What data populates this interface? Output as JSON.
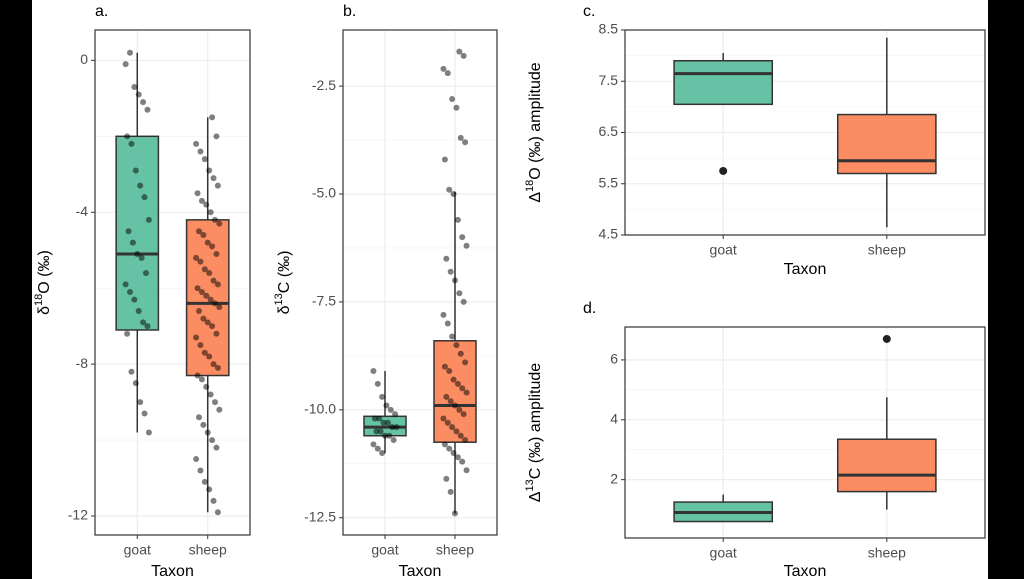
{
  "chart_data": [
    {
      "type": "boxplot",
      "panel_label": "a.",
      "ylabel": [
        "δ",
        "18",
        "O (‰)"
      ],
      "xlabel": "Taxon",
      "categories": [
        "goat",
        "sheep"
      ],
      "colors": [
        "#66c2a5",
        "#fc8d62"
      ],
      "ylim": [
        -12.5,
        0.8
      ],
      "yticks": [
        0,
        -4,
        -8,
        -12
      ],
      "grid": true,
      "stats": [
        {
          "whislo": -9.8,
          "q1": -7.1,
          "med": -5.1,
          "q3": -2.0,
          "whishi": 0.2,
          "outliers": []
        },
        {
          "whislo": -11.9,
          "q1": -8.3,
          "med": -6.4,
          "q3": -4.2,
          "whishi": -1.5,
          "outliers": []
        }
      ],
      "points": [
        [
          -0.1,
          0.2,
          -0.7,
          -0.9,
          -1.1,
          -1.3,
          -2.0,
          -2.2,
          -2.9,
          -3.3,
          -3.6,
          -4.2,
          -4.5,
          -4.8,
          -5.1,
          -5.2,
          -5.6,
          -5.9,
          -6.1,
          -6.3,
          -6.6,
          -6.9,
          -7.0,
          -7.2,
          -8.2,
          -8.5,
          -9.0,
          -9.3,
          -9.8
        ],
        [
          -1.5,
          -2.0,
          -2.2,
          -2.4,
          -2.6,
          -2.9,
          -3.1,
          -3.3,
          -3.5,
          -3.7,
          -3.8,
          -4.0,
          -4.2,
          -4.3,
          -4.5,
          -4.6,
          -4.8,
          -4.9,
          -5.1,
          -5.2,
          -5.3,
          -5.5,
          -5.6,
          -5.8,
          -5.9,
          -6.0,
          -6.1,
          -6.2,
          -6.3,
          -6.4,
          -6.5,
          -6.6,
          -6.8,
          -6.9,
          -7.0,
          -7.2,
          -7.3,
          -7.5,
          -7.7,
          -7.8,
          -8.0,
          -8.1,
          -8.3,
          -8.4,
          -8.6,
          -8.8,
          -9.0,
          -9.2,
          -9.4,
          -9.6,
          -9.8,
          -10.0,
          -10.2,
          -10.5,
          -10.8,
          -11.1,
          -11.3,
          -11.6,
          -11.9
        ]
      ]
    },
    {
      "type": "boxplot",
      "panel_label": "b.",
      "ylabel": [
        "δ",
        "13",
        "C (‰)"
      ],
      "xlabel": "Taxon",
      "categories": [
        "goat",
        "sheep"
      ],
      "colors": [
        "#66c2a5",
        "#fc8d62"
      ],
      "ylim": [
        -12.9,
        -1.2
      ],
      "yticks": [
        -2.5,
        {
          "value": -5,
          "label": "-5.0"
        },
        -7.5,
        {
          "value": -10,
          "label": "-10.0"
        },
        -12.5
      ],
      "grid": true,
      "stats": [
        {
          "whislo": -11.0,
          "q1": -10.6,
          "med": -10.4,
          "q3": -10.15,
          "whishi": -9.1,
          "outliers": []
        },
        {
          "whislo": -12.4,
          "q1": -10.75,
          "med": -9.9,
          "q3": -8.4,
          "whishi": -4.95,
          "outliers": []
        }
      ],
      "points": [
        [
          -9.1,
          -9.4,
          -9.7,
          -9.9,
          -10.0,
          -10.1,
          -10.2,
          -10.2,
          -10.3,
          -10.3,
          -10.4,
          -10.4,
          -10.5,
          -10.5,
          -10.6,
          -10.6,
          -10.7,
          -10.8,
          -10.9,
          -11.0
        ],
        [
          -1.7,
          -1.8,
          -2.1,
          -2.2,
          -2.8,
          -3.0,
          -3.7,
          -3.8,
          -4.2,
          -4.9,
          -5.0,
          -5.6,
          -6.0,
          -6.2,
          -6.5,
          -6.8,
          -7.0,
          -7.3,
          -7.5,
          -7.8,
          -8.0,
          -8.3,
          -8.5,
          -8.7,
          -8.9,
          -9.0,
          -9.1,
          -9.3,
          -9.4,
          -9.5,
          -9.6,
          -9.7,
          -9.8,
          -9.9,
          -10.0,
          -10.1,
          -10.2,
          -10.3,
          -10.4,
          -10.5,
          -10.6,
          -10.7,
          -10.8,
          -10.9,
          -11.0,
          -11.1,
          -11.2,
          -11.4,
          -11.6,
          -11.9,
          -12.4
        ]
      ]
    },
    {
      "type": "boxplot",
      "panel_label": "c.",
      "ylabel": [
        "Δ",
        "18",
        "O (‰) amplitude"
      ],
      "xlabel": "Taxon",
      "categories": [
        "goat",
        "sheep"
      ],
      "colors": [
        "#66c2a5",
        "#fc8d62"
      ],
      "ylim": [
        4.5,
        8.5
      ],
      "yticks": [
        8.5,
        7.5,
        6.5,
        5.5,
        4.5
      ],
      "grid": true,
      "stats": [
        {
          "whislo": 7.05,
          "q1": 7.05,
          "med": 7.65,
          "q3": 7.9,
          "whishi": 8.05,
          "outliers": [
            5.75
          ]
        },
        {
          "whislo": 4.65,
          "q1": 5.7,
          "med": 5.95,
          "q3": 6.85,
          "whishi": 8.35,
          "outliers": []
        }
      ]
    },
    {
      "type": "boxplot",
      "panel_label": "d.",
      "ylabel": [
        "Δ",
        "13",
        "C (‰) amplitude"
      ],
      "xlabel": "Taxon",
      "categories": [
        "goat",
        "sheep"
      ],
      "colors": [
        "#66c2a5",
        "#fc8d62"
      ],
      "ylim": [
        0.05,
        7.1
      ],
      "yticks": [
        6,
        4,
        2
      ],
      "grid": true,
      "stats": [
        {
          "whislo": 0.6,
          "q1": 0.6,
          "med": 0.9,
          "q3": 1.25,
          "whishi": 1.5,
          "outliers": []
        },
        {
          "whislo": 1.0,
          "q1": 1.6,
          "med": 2.15,
          "q3": 3.35,
          "whishi": 4.75,
          "outliers": [
            6.7
          ]
        }
      ]
    }
  ]
}
